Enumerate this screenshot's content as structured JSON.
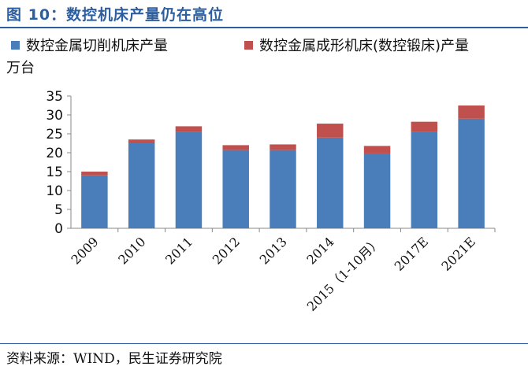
{
  "header": {
    "title": "图 10：数控机床产量仍在高位"
  },
  "unit_label": "万台",
  "footer": {
    "source": "资料来源：WIND，民生证券研究院"
  },
  "colors": {
    "title": "#2c5fa2",
    "series_cutting": "#4a7ebb",
    "series_forming": "#c0504d"
  },
  "chart_data": {
    "type": "bar",
    "stacked": true,
    "categories": [
      "2009",
      "2010",
      "2011",
      "2012",
      "2013",
      "2014",
      "2015（1-10月）",
      "2017E",
      "2021E"
    ],
    "series": [
      {
        "name": "数控金属切削机床产量",
        "color": "#4a7ebb",
        "values": [
          14.0,
          22.5,
          25.5,
          20.7,
          20.7,
          24.0,
          19.8,
          25.5,
          29.0
        ]
      },
      {
        "name": "数控金属成形机床(数控锻床)产量",
        "color": "#c0504d",
        "values": [
          1.0,
          1.0,
          1.5,
          1.3,
          1.5,
          3.7,
          2.0,
          2.7,
          3.5
        ]
      }
    ],
    "ylabel": "万台",
    "ylim": [
      0,
      35
    ],
    "yticks": [
      0,
      5,
      10,
      15,
      20,
      25,
      30,
      35
    ],
    "grid": false,
    "legend_position": "top"
  }
}
